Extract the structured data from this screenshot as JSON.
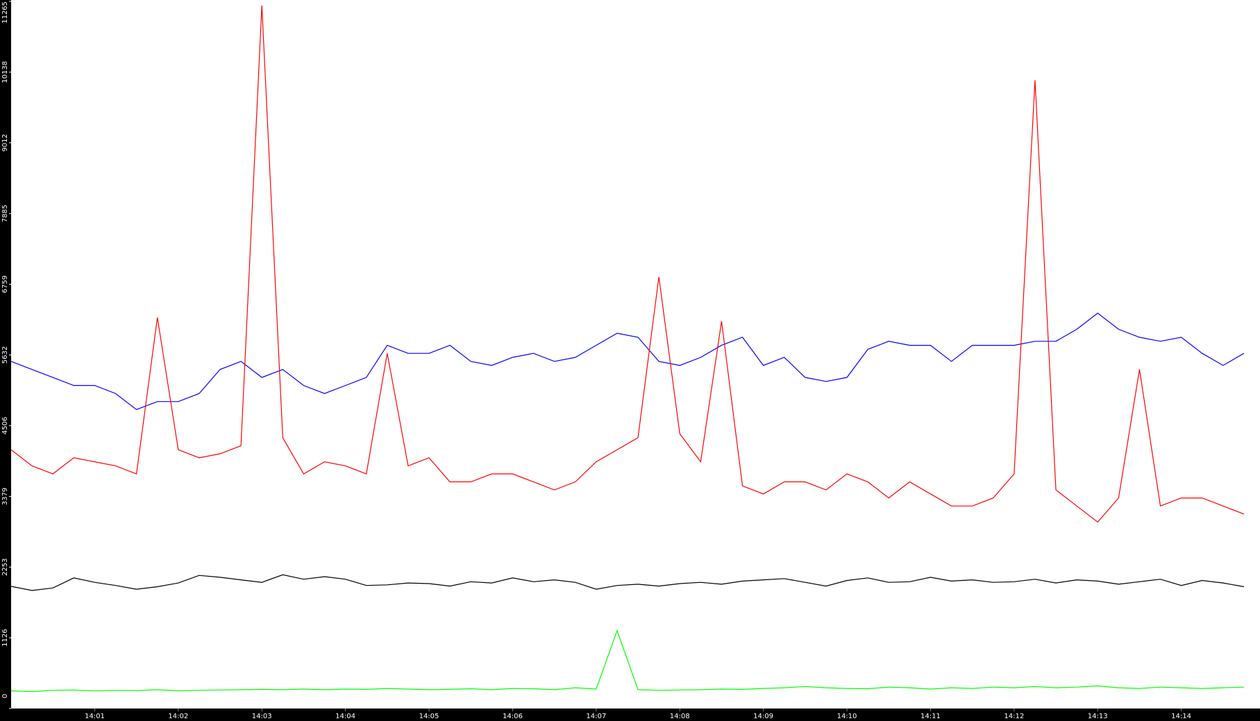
{
  "chart_data": {
    "type": "line",
    "categories": [
      null,
      null,
      null,
      null,
      "14:01",
      null,
      null,
      null,
      "14:02",
      null,
      null,
      null,
      "14:03",
      null,
      null,
      null,
      "14:04",
      null,
      null,
      null,
      "14:05",
      null,
      null,
      null,
      "14:06",
      null,
      null,
      null,
      "14:07",
      null,
      null,
      null,
      "14:08",
      null,
      null,
      null,
      "14:09",
      null,
      null,
      null,
      "14:10",
      null,
      null,
      null,
      "14:11",
      null,
      null,
      null,
      "14:12",
      null,
      null,
      null,
      "14:13",
      null,
      null,
      null,
      "14:14",
      null,
      null,
      null
    ],
    "ylim": [
      0,
      11265
    ],
    "yticks": [
      0,
      1126,
      2253,
      3379,
      4506,
      5632,
      6759,
      7885,
      9012,
      10138,
      11265
    ],
    "series": [
      {
        "color": "#0000ff",
        "values": [
          5530,
          5402,
          5274,
          5146,
          5146,
          5018,
          4762,
          4890,
          4890,
          5018,
          5402,
          5530,
          5274,
          5402,
          5146,
          5018,
          5146,
          5274,
          5786,
          5658,
          5658,
          5786,
          5530,
          5466,
          5594,
          5658,
          5530,
          5594,
          5786,
          5978,
          5914,
          5530,
          5466,
          5594,
          5786,
          5914,
          5466,
          5594,
          5274,
          5210,
          5274,
          5722,
          5850,
          5786,
          5786,
          5530,
          5786,
          5786,
          5786,
          5850,
          5850,
          6042,
          6298,
          6042,
          5914,
          5850,
          5914,
          5658,
          5466,
          5658
        ]
      },
      {
        "color": "#ff0000",
        "values": [
          4122,
          3866,
          3738,
          3994,
          3930,
          3866,
          3738,
          6230,
          4122,
          3994,
          4058,
          4186,
          11200,
          4314,
          3738,
          3930,
          3866,
          3738,
          5658,
          3866,
          3994,
          3610,
          3610,
          3738,
          3738,
          3610,
          3482,
          3610,
          3930,
          4122,
          4314,
          6874,
          4378,
          3930,
          6170,
          3546,
          3418,
          3610,
          3610,
          3482,
          3738,
          3610,
          3354,
          3610,
          3418,
          3226,
          3226,
          3354,
          3738,
          10010,
          3482,
          3226,
          2970,
          3354,
          5402,
          3226,
          3354,
          3354,
          3226,
          3098
        ]
      },
      {
        "color": "#000000",
        "values": [
          1946,
          1880,
          1920,
          2080,
          2010,
          1960,
          1900,
          1940,
          2000,
          2120,
          2090,
          2050,
          2010,
          2130,
          2060,
          2100,
          2060,
          1960,
          1970,
          2000,
          1990,
          1950,
          2020,
          2000,
          2080,
          2020,
          2050,
          2010,
          1900,
          1960,
          1980,
          1950,
          1990,
          2010,
          1980,
          2030,
          2050,
          2070,
          2010,
          1950,
          2040,
          2080,
          2010,
          2020,
          2090,
          2030,
          2050,
          2010,
          2020,
          2060,
          2000,
          2050,
          2030,
          1980,
          2020,
          2060,
          1960,
          2040,
          2000,
          1940
        ]
      },
      {
        "color": "#00ff00",
        "values": [
          282,
          270,
          290,
          295,
          280,
          290,
          285,
          300,
          282,
          290,
          295,
          300,
          305,
          300,
          310,
          300,
          310,
          305,
          320,
          310,
          300,
          305,
          315,
          300,
          320,
          315,
          300,
          330,
          310,
          1240,
          300,
          290,
          295,
          300,
          310,
          305,
          320,
          330,
          350,
          330,
          320,
          315,
          340,
          330,
          310,
          330,
          320,
          340,
          330,
          350,
          330,
          340,
          360,
          330,
          320,
          340,
          330,
          320,
          330,
          340
        ]
      }
    ]
  }
}
